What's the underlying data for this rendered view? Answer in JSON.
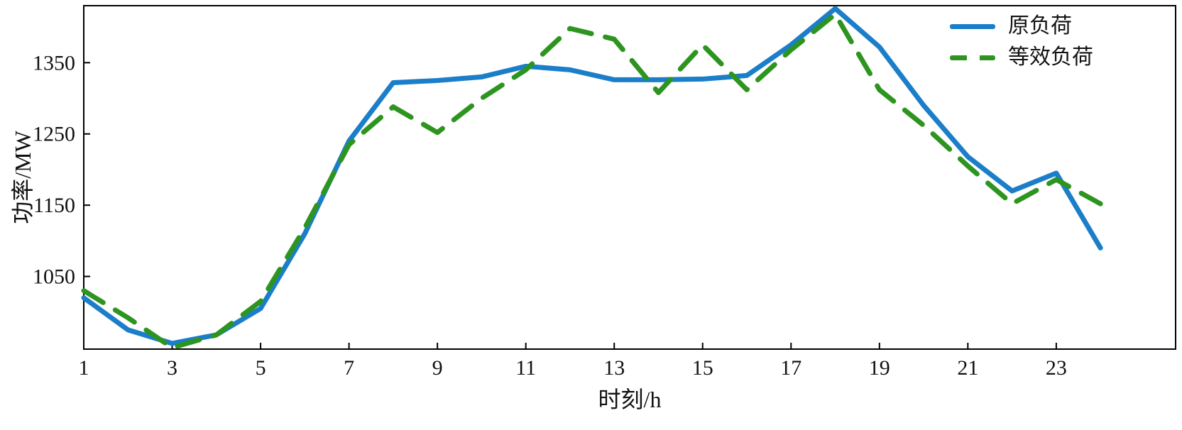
{
  "colors": {
    "background": "#ffffff",
    "axis": "#000000",
    "text": "#111111",
    "original_load": "#1b7ec9",
    "equivalent_load": "#2e9420"
  },
  "chart_data": {
    "type": "line",
    "title": "",
    "xlabel": "时刻/h",
    "ylabel": "功率/MW",
    "x": [
      1,
      2,
      3,
      4,
      5,
      6,
      7,
      8,
      9,
      10,
      11,
      12,
      13,
      14,
      15,
      16,
      17,
      18,
      19,
      20,
      21,
      22,
      23,
      24
    ],
    "xlim": [
      1,
      25.7
    ],
    "ylim": [
      948,
      1430
    ],
    "xticks": [
      1,
      3,
      5,
      7,
      9,
      11,
      13,
      15,
      17,
      19,
      21,
      23
    ],
    "yticks": [
      1050,
      1150,
      1250,
      1350
    ],
    "grid": false,
    "legend_position": "top-right",
    "frame": true,
    "series": [
      {
        "name": "原负荷",
        "style": "solid",
        "color": "#1b7ec9",
        "values": [
          1020,
          975,
          956,
          968,
          1005,
          1110,
          1240,
          1322,
          1325,
          1330,
          1345,
          1340,
          1326,
          1326,
          1327,
          1332,
          1375,
          1426,
          1372,
          1290,
          1218,
          1170,
          1195,
          1090
        ]
      },
      {
        "name": "等效负荷",
        "style": "dashed",
        "color": "#2e9420",
        "values": [
          1030,
          992,
          950,
          968,
          1015,
          1118,
          1235,
          1288,
          1252,
          1300,
          1340,
          1398,
          1383,
          1308,
          1375,
          1312,
          1368,
          1418,
          1312,
          1262,
          1205,
          1152,
          1186,
          1152
        ]
      }
    ]
  }
}
